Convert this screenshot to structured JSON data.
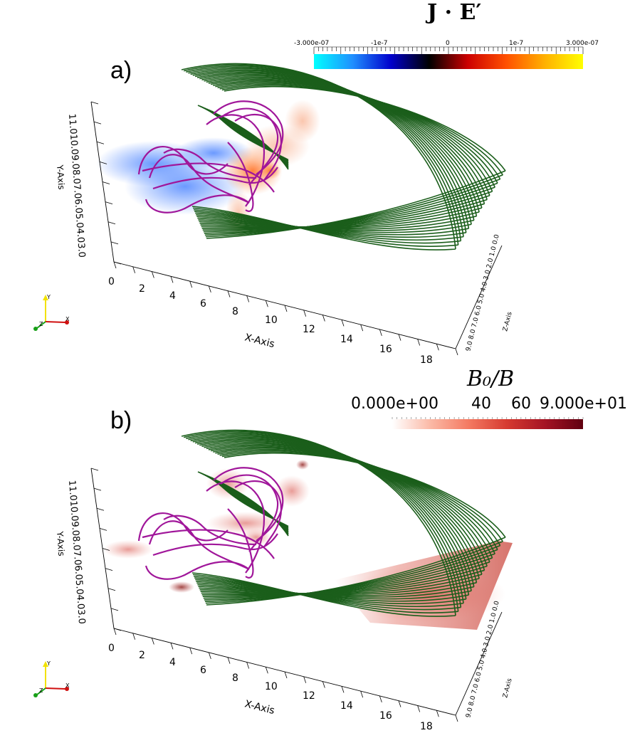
{
  "panels": [
    {
      "label": "a)",
      "colorbar": {
        "title": "J · E′",
        "ticks": [
          "-3.000e-07",
          "-1e-7",
          "0",
          "1e-7",
          "3.000e-07"
        ],
        "colors": [
          "#00ffff",
          "#2090ff",
          "#0000cc",
          "#000000",
          "#cc0000",
          "#ff5000",
          "#ffb000",
          "#ffff00"
        ]
      },
      "axes": {
        "x_label": "X-Axis",
        "x_ticks": [
          "0",
          "2",
          "4",
          "6",
          "8",
          "10",
          "12",
          "14",
          "16",
          "18"
        ],
        "y_label": "Y-Axis",
        "y_ticks": "11.010.09.08.07.06.05.04.03.0",
        "z_label": "Z-Axis",
        "z_ticks": "9.0 8.0 7.0 6.0 5.0 4.0 3.0 2.0 1.0 0.0"
      },
      "orientation": {
        "x": "X",
        "y": "Y",
        "z": "Z"
      }
    },
    {
      "label": "b)",
      "colorbar": {
        "title": "B₀/B",
        "ticks": [
          "0.000e+00",
          "40",
          "60",
          "9.000e+01"
        ],
        "colors": [
          "#ffffff",
          "#fbb9a6",
          "#f47a62",
          "#d63a30",
          "#a51424",
          "#600010"
        ]
      },
      "axes": {
        "x_label": "X-Axis",
        "x_ticks": [
          "0",
          "2",
          "4",
          "6",
          "8",
          "10",
          "12",
          "14",
          "16",
          "18"
        ],
        "y_label": "Y-Axis",
        "y_ticks": "11.010.09.08.07.06.05.04.03.0",
        "z_label": "Z-Axis",
        "z_ticks": "9.0 8.0 7.0 6.0 5.0 4.0 3.0 2.0 1.0 0.0"
      },
      "orientation": {
        "x": "X",
        "y": "Y",
        "z": "Z"
      }
    }
  ]
}
